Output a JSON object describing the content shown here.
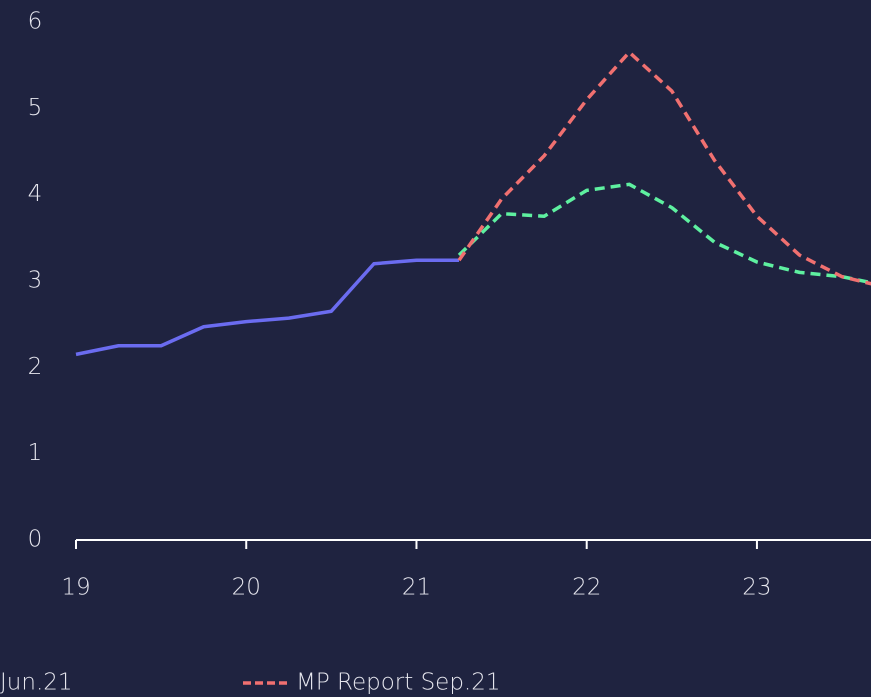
{
  "chart_data": {
    "type": "line",
    "xlim": [
      19,
      23.67
    ],
    "xticks": [
      19,
      20,
      21,
      22,
      23
    ],
    "ylim": [
      0,
      6
    ],
    "yticks": [
      0,
      1,
      2,
      3,
      4,
      5,
      6
    ],
    "series": [
      {
        "color": "#6b6cf0",
        "dash": false,
        "x": [
          19,
          19.25,
          19.5,
          19.75,
          20,
          20.25,
          20.5,
          20.75,
          21,
          21.25
        ],
        "values": [
          2.15,
          2.25,
          2.25,
          2.47,
          2.53,
          2.57,
          2.65,
          3.2,
          3.24,
          3.24
        ]
      },
      {
        "name": "Jun.21",
        "color": "#5ef0a0",
        "dash": true,
        "x": [
          21.25,
          21.5,
          21.75,
          22,
          22.25,
          22.5,
          22.75,
          23,
          23.25,
          23.5,
          23.75
        ],
        "values": [
          3.3,
          3.78,
          3.75,
          4.05,
          4.12,
          3.85,
          3.45,
          3.22,
          3.1,
          3.05,
          2.95
        ]
      },
      {
        "name": "MP Report Sep.21",
        "color": "#f07070",
        "dash": true,
        "x": [
          21.25,
          21.5,
          21.75,
          22,
          22.25,
          22.5,
          22.75,
          23,
          23.25,
          23.5,
          23.75
        ],
        "values": [
          3.24,
          3.95,
          4.45,
          5.1,
          5.65,
          5.2,
          4.4,
          3.75,
          3.3,
          3.05,
          2.93
        ]
      }
    ]
  }
}
